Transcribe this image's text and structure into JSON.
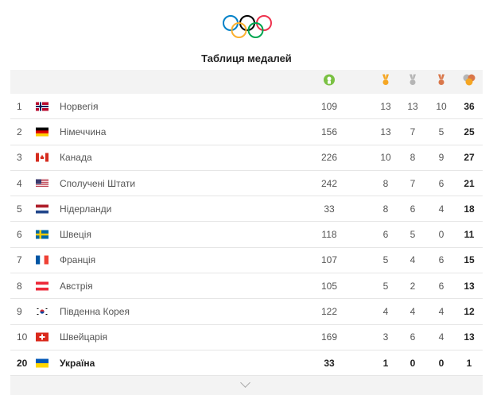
{
  "header": {
    "title": "Таблиця медалей"
  },
  "columns": {
    "athletes_icon": "athlete-icon",
    "gold_icon": "gold-medal-icon",
    "silver_icon": "silver-medal-icon",
    "bronze_icon": "bronze-medal-icon",
    "total_icon": "total-medals-icon"
  },
  "colors": {
    "gold": "#f5a623",
    "silver": "#b5b5b5",
    "bronze": "#d9774a",
    "athletes": "#7ac143"
  },
  "rows": [
    {
      "rank": "1",
      "flag": "norway",
      "country": "Норвегія",
      "athletes": "109",
      "gold": "13",
      "silver": "13",
      "bronze": "10",
      "total": "36"
    },
    {
      "rank": "2",
      "flag": "germany",
      "country": "Німеччина",
      "athletes": "156",
      "gold": "13",
      "silver": "7",
      "bronze": "5",
      "total": "25"
    },
    {
      "rank": "3",
      "flag": "canada",
      "country": "Канада",
      "athletes": "226",
      "gold": "10",
      "silver": "8",
      "bronze": "9",
      "total": "27"
    },
    {
      "rank": "4",
      "flag": "usa",
      "country": "Сполучені Штати",
      "athletes": "242",
      "gold": "8",
      "silver": "7",
      "bronze": "6",
      "total": "21"
    },
    {
      "rank": "5",
      "flag": "netherlands",
      "country": "Нідерланди",
      "athletes": "33",
      "gold": "8",
      "silver": "6",
      "bronze": "4",
      "total": "18"
    },
    {
      "rank": "6",
      "flag": "sweden",
      "country": "Швеція",
      "athletes": "118",
      "gold": "6",
      "silver": "5",
      "bronze": "0",
      "total": "11"
    },
    {
      "rank": "7",
      "flag": "france",
      "country": "Франція",
      "athletes": "107",
      "gold": "5",
      "silver": "4",
      "bronze": "6",
      "total": "15"
    },
    {
      "rank": "8",
      "flag": "austria",
      "country": "Австрія",
      "athletes": "105",
      "gold": "5",
      "silver": "2",
      "bronze": "6",
      "total": "13"
    },
    {
      "rank": "9",
      "flag": "south-korea",
      "country": "Південна Корея",
      "athletes": "122",
      "gold": "4",
      "silver": "4",
      "bronze": "4",
      "total": "12"
    },
    {
      "rank": "10",
      "flag": "switzerland",
      "country": "Швейцарія",
      "athletes": "169",
      "gold": "3",
      "silver": "6",
      "bronze": "4",
      "total": "13"
    },
    {
      "rank": "20",
      "flag": "ukraine",
      "country": "Україна",
      "athletes": "33",
      "gold": "1",
      "silver": "0",
      "bronze": "0",
      "total": "1",
      "highlighted": true
    }
  ]
}
